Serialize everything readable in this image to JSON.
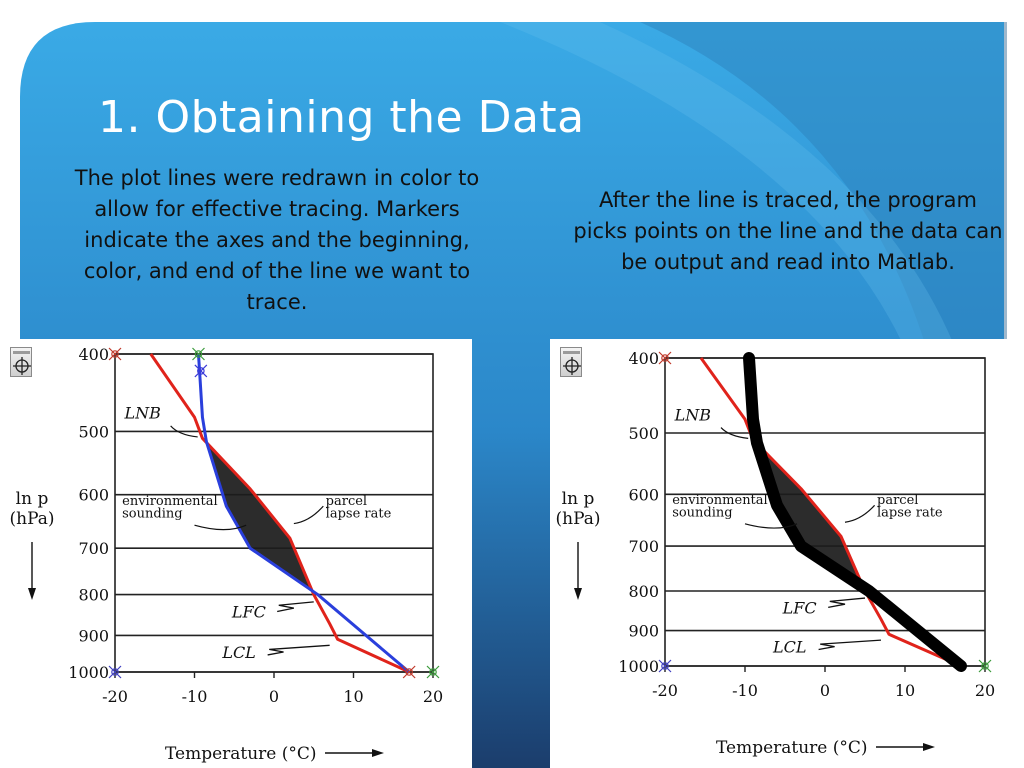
{
  "slide": {
    "title": "1. Obtaining the Data",
    "caption_left": "The plot lines were redrawn in color to allow for effective tracing. Markers indicate the axes and the beginning, color, and end of the line we want to trace.",
    "caption_right": "After the line is traced, the program picks points on the line and the data can be output and read into Matlab."
  },
  "colors": {
    "slide_blue": "#3aaae6",
    "slide_dark": "#1b3d6c",
    "environmental_line": "#e0231b",
    "parcel_line": "#2a3fdc",
    "traced_line": "#000000",
    "cape_fill": "#1c1c1c"
  },
  "left_tool_icon": "crosshair-select-icon",
  "right_tool_icon": "crosshair-select-icon",
  "chart_data": [
    {
      "type": "line",
      "y_scale": "log",
      "ylim": [
        400,
        1000
      ],
      "xlim": [
        -20,
        20
      ],
      "y_ticks": [
        "400",
        "500",
        "600",
        "700",
        "800",
        "900",
        "1000"
      ],
      "x_ticks": [
        "-20",
        "-10",
        "0",
        "10",
        "20"
      ],
      "ylabel_line1": "ln p",
      "ylabel_line2": "(hPa)",
      "xlabel": "Temperature (°C)",
      "annotations": {
        "lnb": "LNB",
        "env_line1": "environmental",
        "env_line2": "sounding",
        "parcel_line1": "parcel",
        "parcel_line2": "lapse rate",
        "lfc": "LFC",
        "lcl": "LCL"
      },
      "series": [
        {
          "points": [
            [
              -15.5,
              400
            ],
            [
              -10,
              480
            ],
            [
              -9,
              510
            ],
            [
              -3,
              590
            ],
            [
              2,
              680
            ],
            [
              5,
              800
            ],
            [
              7,
              870
            ],
            [
              8,
              910
            ],
            [
              17,
              1000
            ]
          ]
        },
        {
          "points": [
            [
              -9.5,
              400
            ],
            [
              -9.3,
              430
            ],
            [
              -9,
              480
            ],
            [
              -8.5,
              515
            ],
            [
              -6,
              620
            ],
            [
              -3,
              700
            ],
            [
              5.5,
              800
            ],
            [
              17,
              1000
            ]
          ]
        }
      ]
    },
    {
      "type": "line",
      "y_scale": "log",
      "ylim": [
        400,
        1000
      ],
      "xlim": [
        -20,
        20
      ],
      "y_ticks": [
        "400",
        "500",
        "600",
        "700",
        "800",
        "900",
        "1000"
      ],
      "x_ticks": [
        "-20",
        "-10",
        "0",
        "10",
        "20"
      ],
      "ylabel_line1": "ln p",
      "ylabel_line2": "(hPa)",
      "xlabel": "Temperature (°C)",
      "annotations": {
        "lnb": "LNB",
        "env_line1": "environmental",
        "env_line2": "sounding",
        "parcel_line1": "parcel",
        "parcel_line2": "lapse rate",
        "lfc": "LFC",
        "lcl": "LCL"
      },
      "series": [
        {
          "points": [
            [
              -15.5,
              400
            ],
            [
              -10,
              480
            ],
            [
              -9,
              510
            ],
            [
              -3,
              590
            ],
            [
              2,
              680
            ],
            [
              5,
              800
            ],
            [
              7,
              870
            ],
            [
              8,
              910
            ],
            [
              17,
              1000
            ]
          ]
        },
        {
          "points": [
            [
              -9.5,
              400
            ],
            [
              -9.3,
              430
            ],
            [
              -9,
              480
            ],
            [
              -8.5,
              515
            ],
            [
              -6,
              620
            ],
            [
              -3,
              700
            ],
            [
              5.5,
              800
            ],
            [
              17,
              1000
            ]
          ]
        }
      ]
    }
  ]
}
